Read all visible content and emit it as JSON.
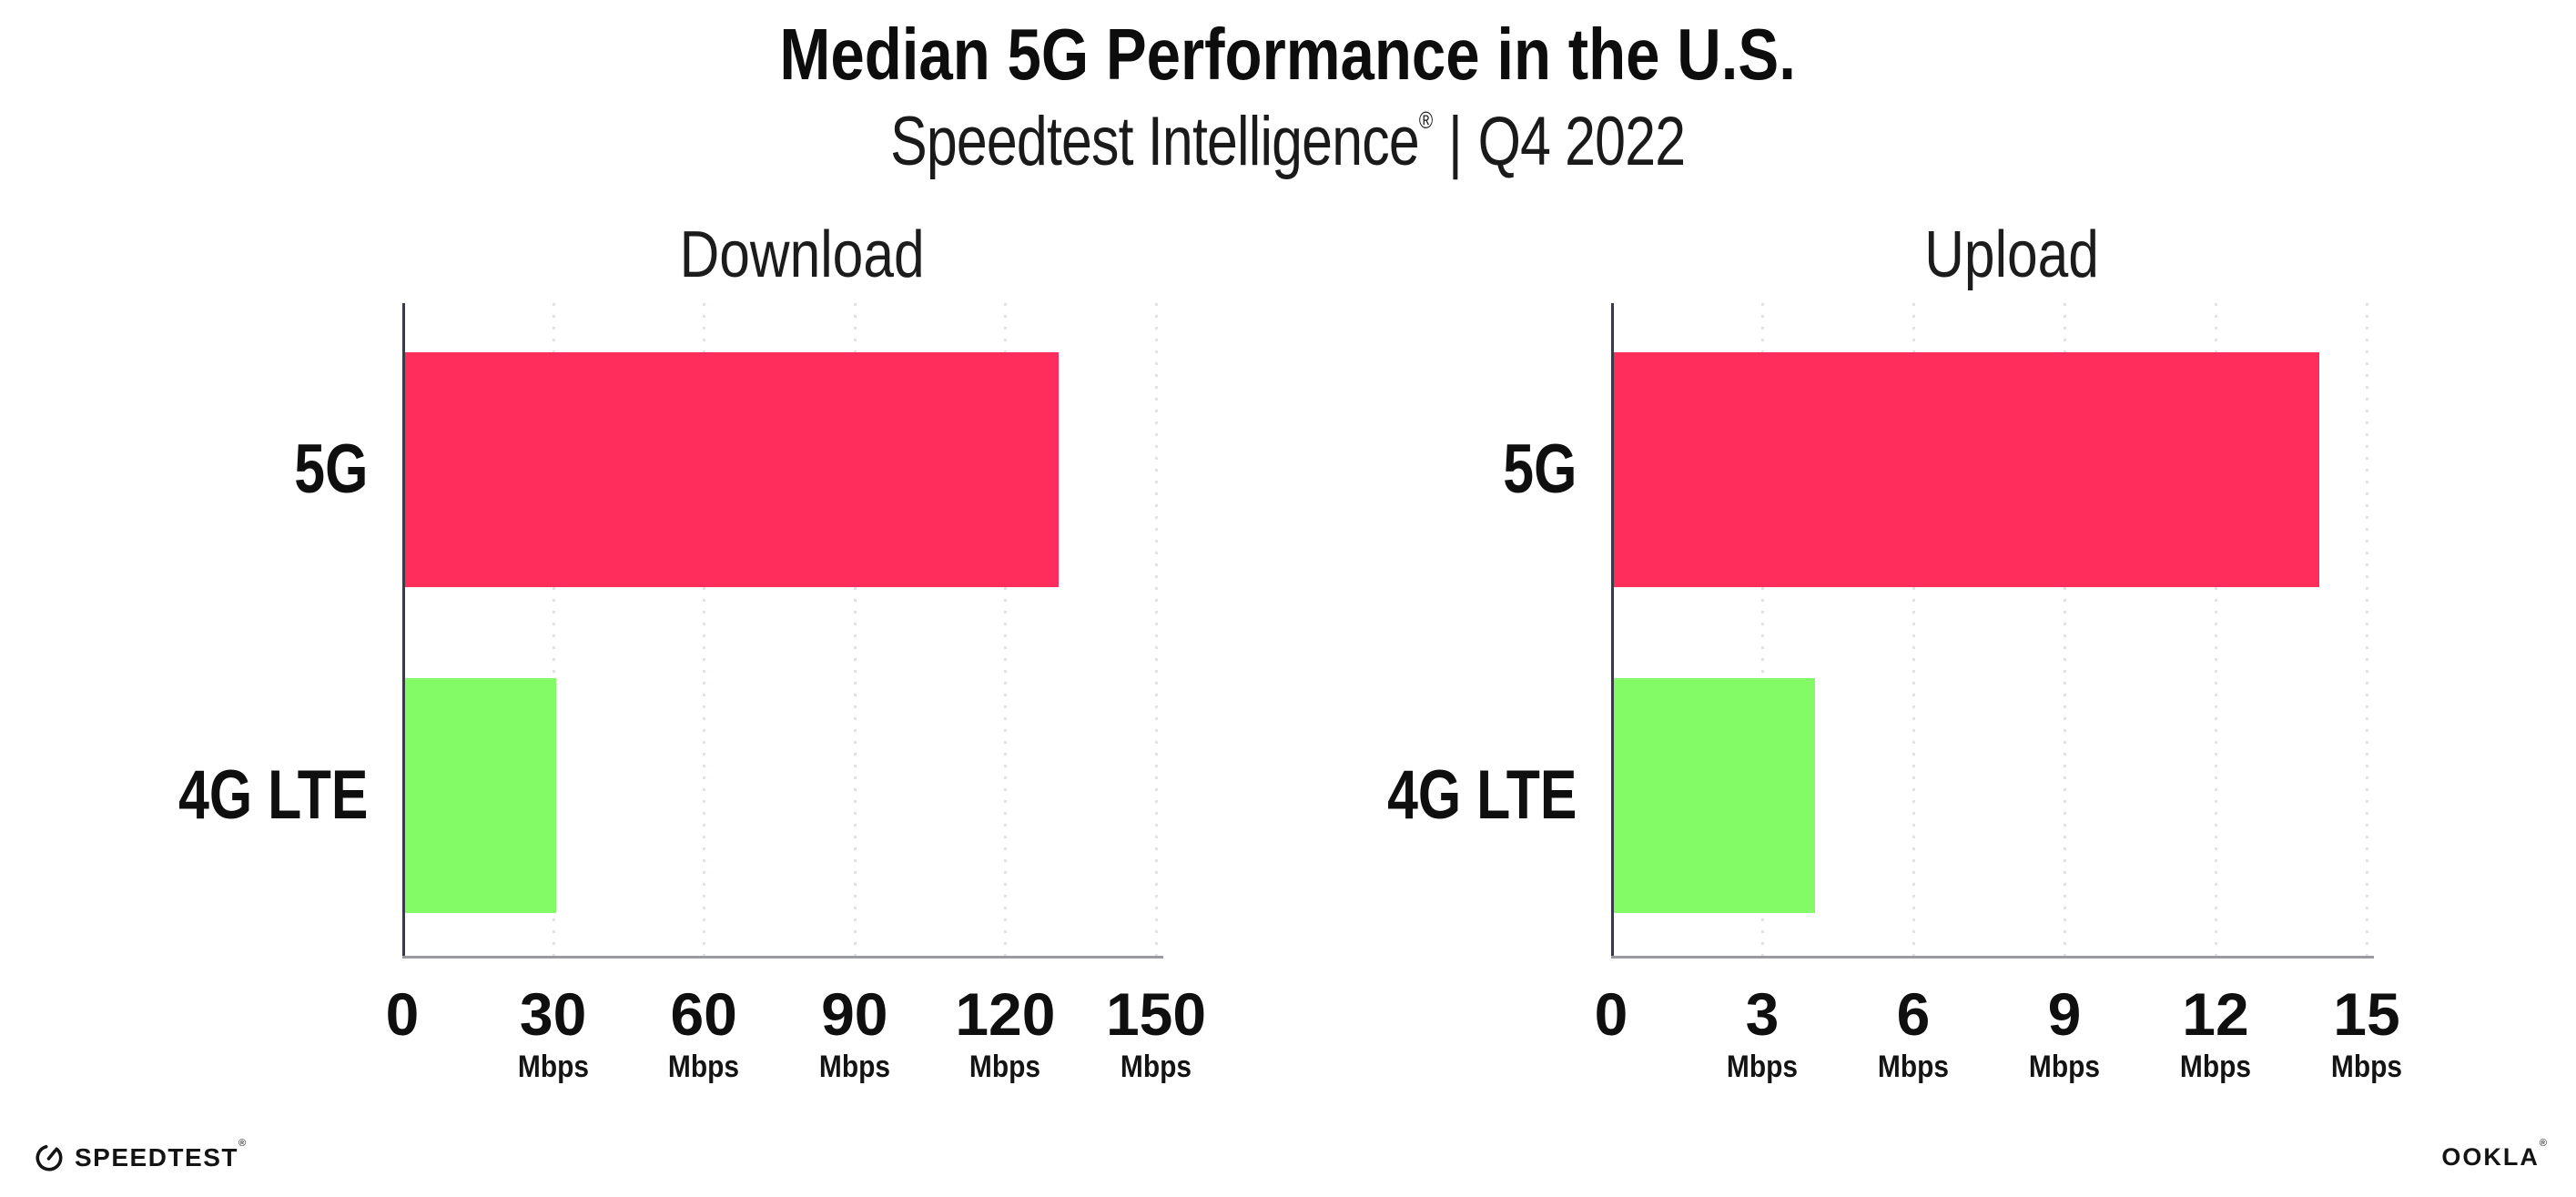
{
  "header": {
    "title": "Median 5G Performance in the U.S.",
    "subtitle_brand": "Speedtest Intelligence",
    "subtitle_reg": "®",
    "subtitle_separator": "|",
    "subtitle_period": "Q4 2022"
  },
  "chart_data": [
    {
      "type": "bar",
      "orientation": "horizontal",
      "title": "Download",
      "categories": [
        "5G",
        "4G LTE"
      ],
      "values": [
        130,
        30
      ],
      "xlim": [
        0,
        150
      ],
      "xticks": [
        0,
        30,
        60,
        90,
        120,
        150
      ],
      "xtick_unit": "Mbps",
      "xlabel": "",
      "ylabel": "",
      "legend": "none",
      "grid": "vertical-dotted",
      "bar_colors": [
        "#ff2d5c",
        "#82fb66"
      ]
    },
    {
      "type": "bar",
      "orientation": "horizontal",
      "title": "Upload",
      "categories": [
        "5G",
        "4G LTE"
      ],
      "values": [
        14,
        4
      ],
      "xlim": [
        0,
        15
      ],
      "xticks": [
        0,
        3,
        6,
        9,
        12,
        15
      ],
      "xtick_unit": "Mbps",
      "xlabel": "",
      "ylabel": "",
      "legend": "none",
      "grid": "vertical-dotted",
      "bar_colors": [
        "#ff2d5c",
        "#82fb66"
      ]
    }
  ],
  "colors": {
    "bar_5g": "#ff2d5c",
    "bar_4g_lte": "#82fb66",
    "axis_line": "#3a3a46",
    "baseline": "#9a9aa2",
    "grid_dots": "#e0e1eb",
    "text": "#0f0f0f"
  },
  "footer": {
    "speedtest_wordmark": "SPEEDTEST",
    "speedtest_reg": "®",
    "ookla_wordmark": "OOKLA",
    "ookla_reg": "®"
  }
}
